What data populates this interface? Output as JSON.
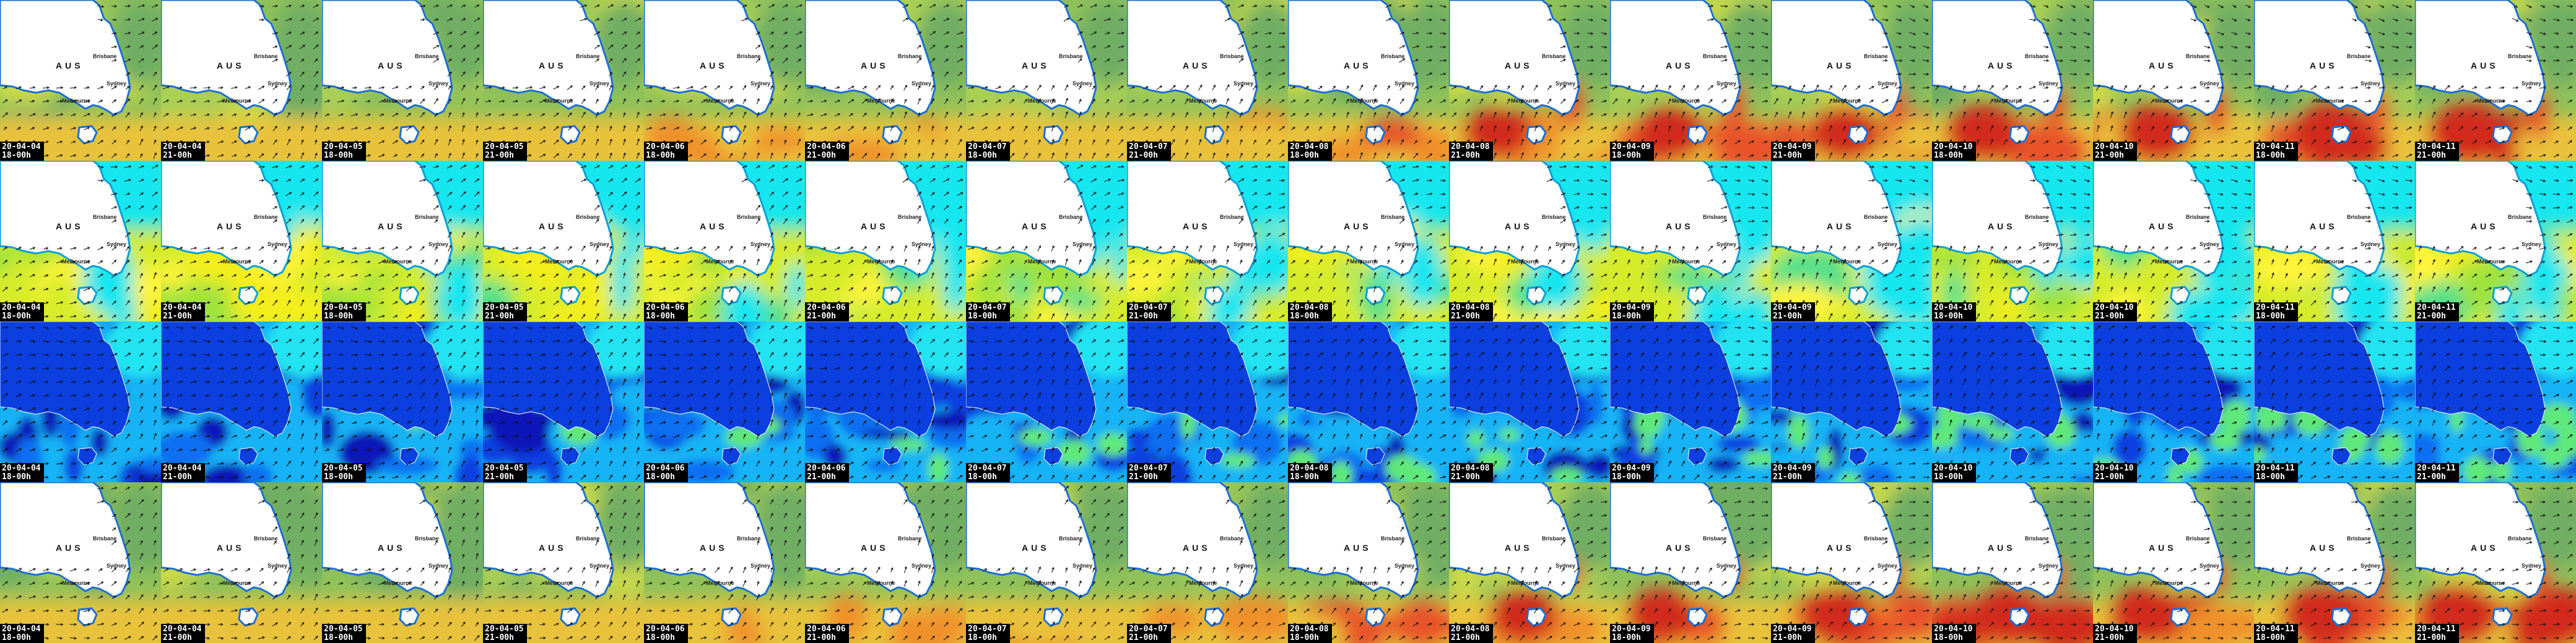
{
  "map": {
    "country_label": "AUS",
    "cities": [
      "Brisbane",
      "Sydney",
      "Melbourne"
    ]
  },
  "rows": [
    {
      "name": "row-a",
      "style": "warm"
    },
    {
      "name": "row-b",
      "style": "greenyellow"
    },
    {
      "name": "row-c",
      "style": "blue"
    },
    {
      "name": "row-d",
      "style": "warm"
    }
  ],
  "timestamps": [
    {
      "date": "20-04-04",
      "hour": "18-00h"
    },
    {
      "date": "20-04-04",
      "hour": "21-00h"
    },
    {
      "date": "20-04-05",
      "hour": "18-00h"
    },
    {
      "date": "20-04-05",
      "hour": "21-00h"
    },
    {
      "date": "20-04-06",
      "hour": "18-00h"
    },
    {
      "date": "20-04-06",
      "hour": "21-00h"
    },
    {
      "date": "20-04-07",
      "hour": "18-00h"
    },
    {
      "date": "20-04-07",
      "hour": "21-00h"
    },
    {
      "date": "20-04-08",
      "hour": "18-00h"
    },
    {
      "date": "20-04-08",
      "hour": "21-00h"
    },
    {
      "date": "20-04-09",
      "hour": "18-00h"
    },
    {
      "date": "20-04-09",
      "hour": "21-00h"
    },
    {
      "date": "20-04-10",
      "hour": "18-00h"
    },
    {
      "date": "20-04-10",
      "hour": "21-00h"
    },
    {
      "date": "20-04-11",
      "hour": "18-00h"
    },
    {
      "date": "20-04-11",
      "hour": "21-00h"
    }
  ],
  "palettes": {
    "warm": {
      "base": "#8fc15a",
      "field": [
        "#6fae63",
        "#a9cf55",
        "#c9d94a",
        "#e9c23a",
        "#f0902a",
        "#e8532a",
        "#d22a1f"
      ],
      "land": "#ffffff",
      "coast": "#1b6fd6",
      "arrow": "#1a1a1a"
    },
    "greenyellow": {
      "base": "#b7dd35",
      "field": [
        "#19e6ef",
        "#52e08a",
        "#9ee23d",
        "#d6ec2a",
        "#f3ee1e",
        "#fff43a"
      ],
      "land": "#ffffff",
      "coast": "#0a9fd8",
      "arrow": "#1a1a1a"
    },
    "blue": {
      "base": "#0a8ef0",
      "field": [
        "#0a16b8",
        "#0b3fe0",
        "#0e6ff2",
        "#19b3f6",
        "#20e3f2",
        "#5ee87a"
      ],
      "land": "#0b3fe0",
      "coast": "#ffffff",
      "arrow": "#111111"
    }
  }
}
